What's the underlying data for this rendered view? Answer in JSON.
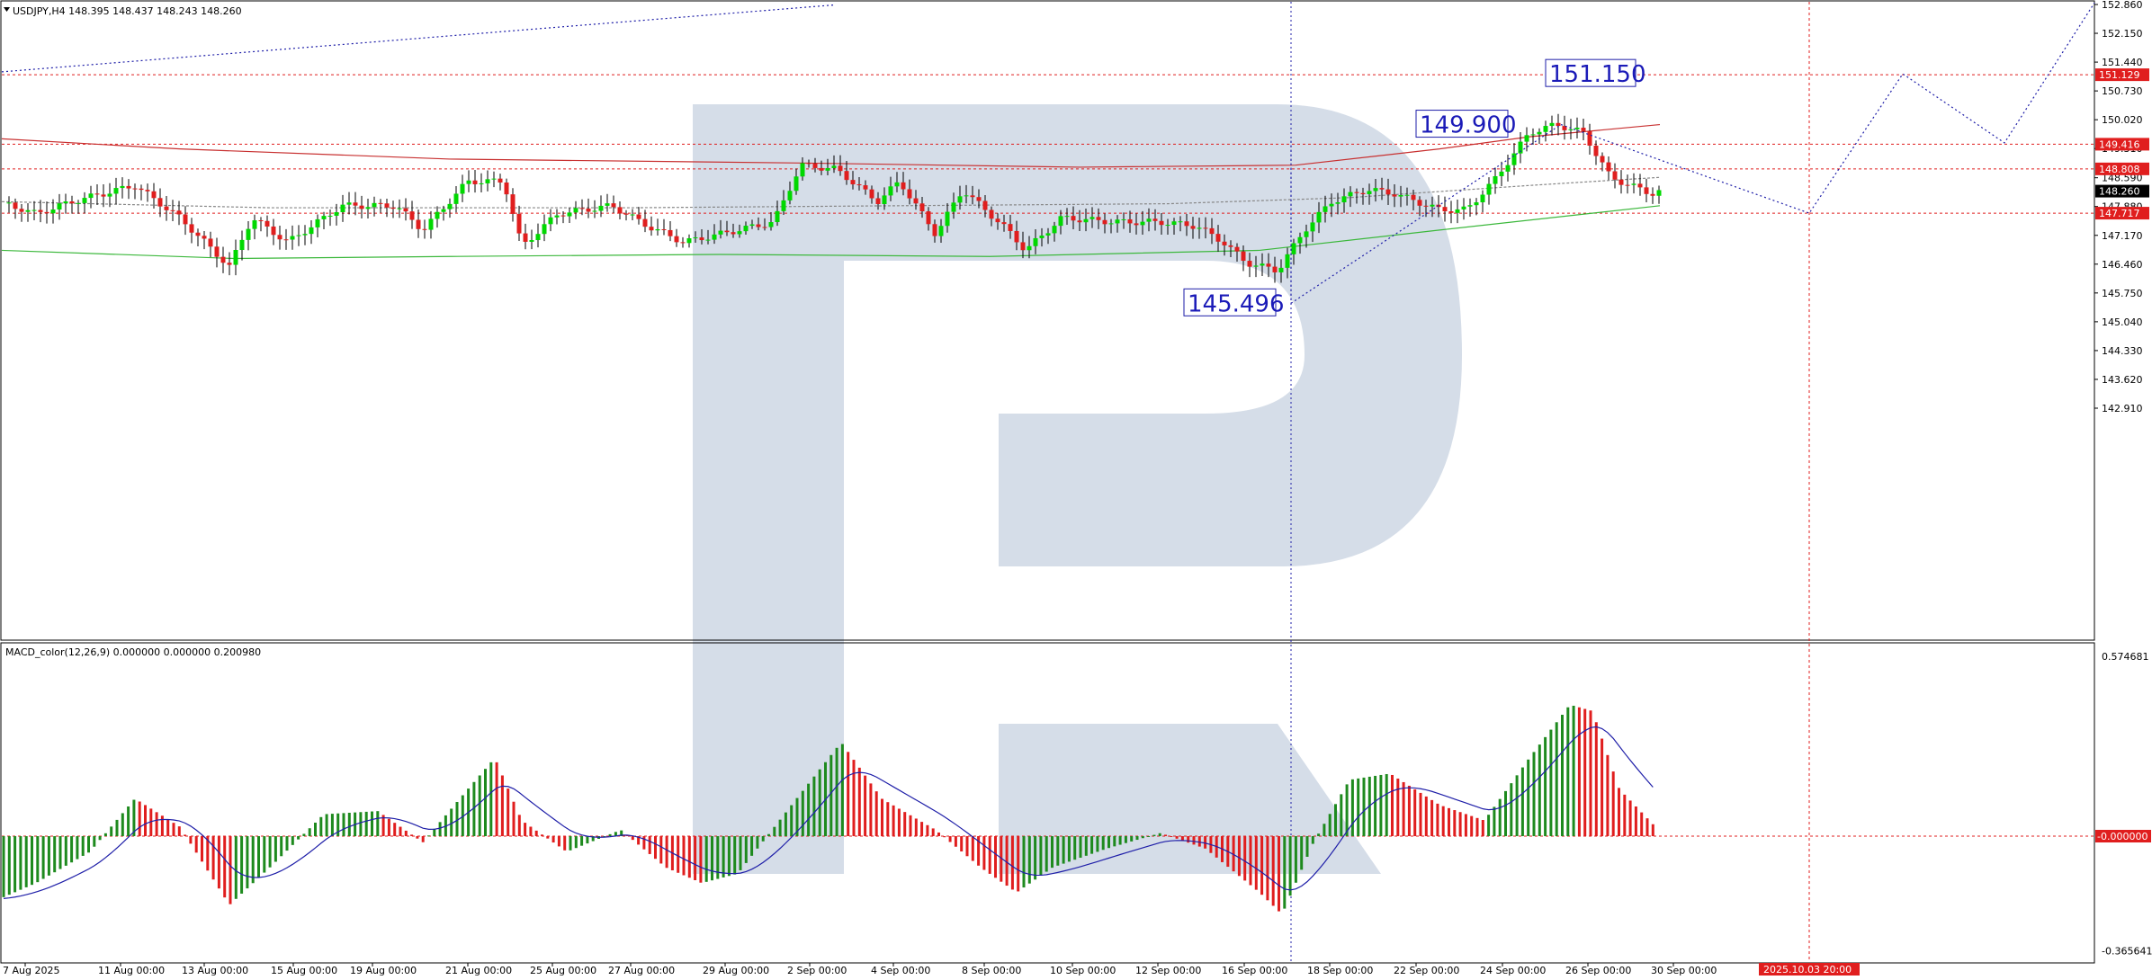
{
  "chart_data": {
    "type": "candlestick",
    "main": {
      "title": "USDJPY,H4  148.395 148.437 148.243 148.260",
      "ylim": [
        142.55,
        152.95
      ],
      "yticks": [
        "152.860",
        "152.150",
        "151.440",
        "150.730",
        "150.020",
        "149.310",
        "148.590",
        "147.880",
        "147.170",
        "146.460",
        "145.750",
        "145.040",
        "144.330",
        "143.620",
        "142.910"
      ],
      "price_boxes": [
        {
          "text": "151.129",
          "color": "#e01e1e"
        },
        {
          "text": "149.416",
          "color": "#e01e1e"
        },
        {
          "text": "148.808",
          "color": "#e01e1e"
        },
        {
          "text": "148.260",
          "color": "#000000"
        },
        {
          "text": "147.717",
          "color": "#e01e1e"
        }
      ],
      "annotations": [
        {
          "text": "151.150",
          "price": 151.15
        },
        {
          "text": "149.900",
          "price": 149.9
        },
        {
          "text": "145.496",
          "price": 145.496
        }
      ]
    },
    "macd": {
      "title": "MACD_color(12,26,9) 0.000000 0.000000 0.200980",
      "ylim": [
        -0.4,
        0.6
      ],
      "ytick_top": "0.574681",
      "ytick_bottom": "-0.365641",
      "zero_box": "-0.000000"
    },
    "xticks": [
      "7 Aug 2025",
      "11 Aug 00:00",
      "13 Aug 00:00",
      "15 Aug 00:00",
      "19 Aug 00:00",
      "21 Aug 00:00",
      "25 Aug 00:00",
      "27 Aug 00:00",
      "29 Aug 00:00",
      "2 Sep 00:00",
      "4 Sep 00:00",
      "8 Sep 00:00",
      "10 Sep 00:00",
      "12 Sep 00:00",
      "16 Sep 00:00",
      "18 Sep 00:00",
      "22 Sep 00:00",
      "24 Sep 00:00",
      "26 Sep 00:00",
      "30 Sep 00:00"
    ],
    "x_cursor_label": "2025.10.03 20:00",
    "colors": {
      "bull": "#00d800",
      "bear": "#e01e1e",
      "histo_up": "#1e8a1e",
      "histo_down": "#e01e1e",
      "signal": "#1e1ea8",
      "level": "#e01e1e",
      "forecast": "#1e1ea8",
      "ma_slow": "#c83030",
      "ma_mid": "#3cb83c"
    }
  }
}
